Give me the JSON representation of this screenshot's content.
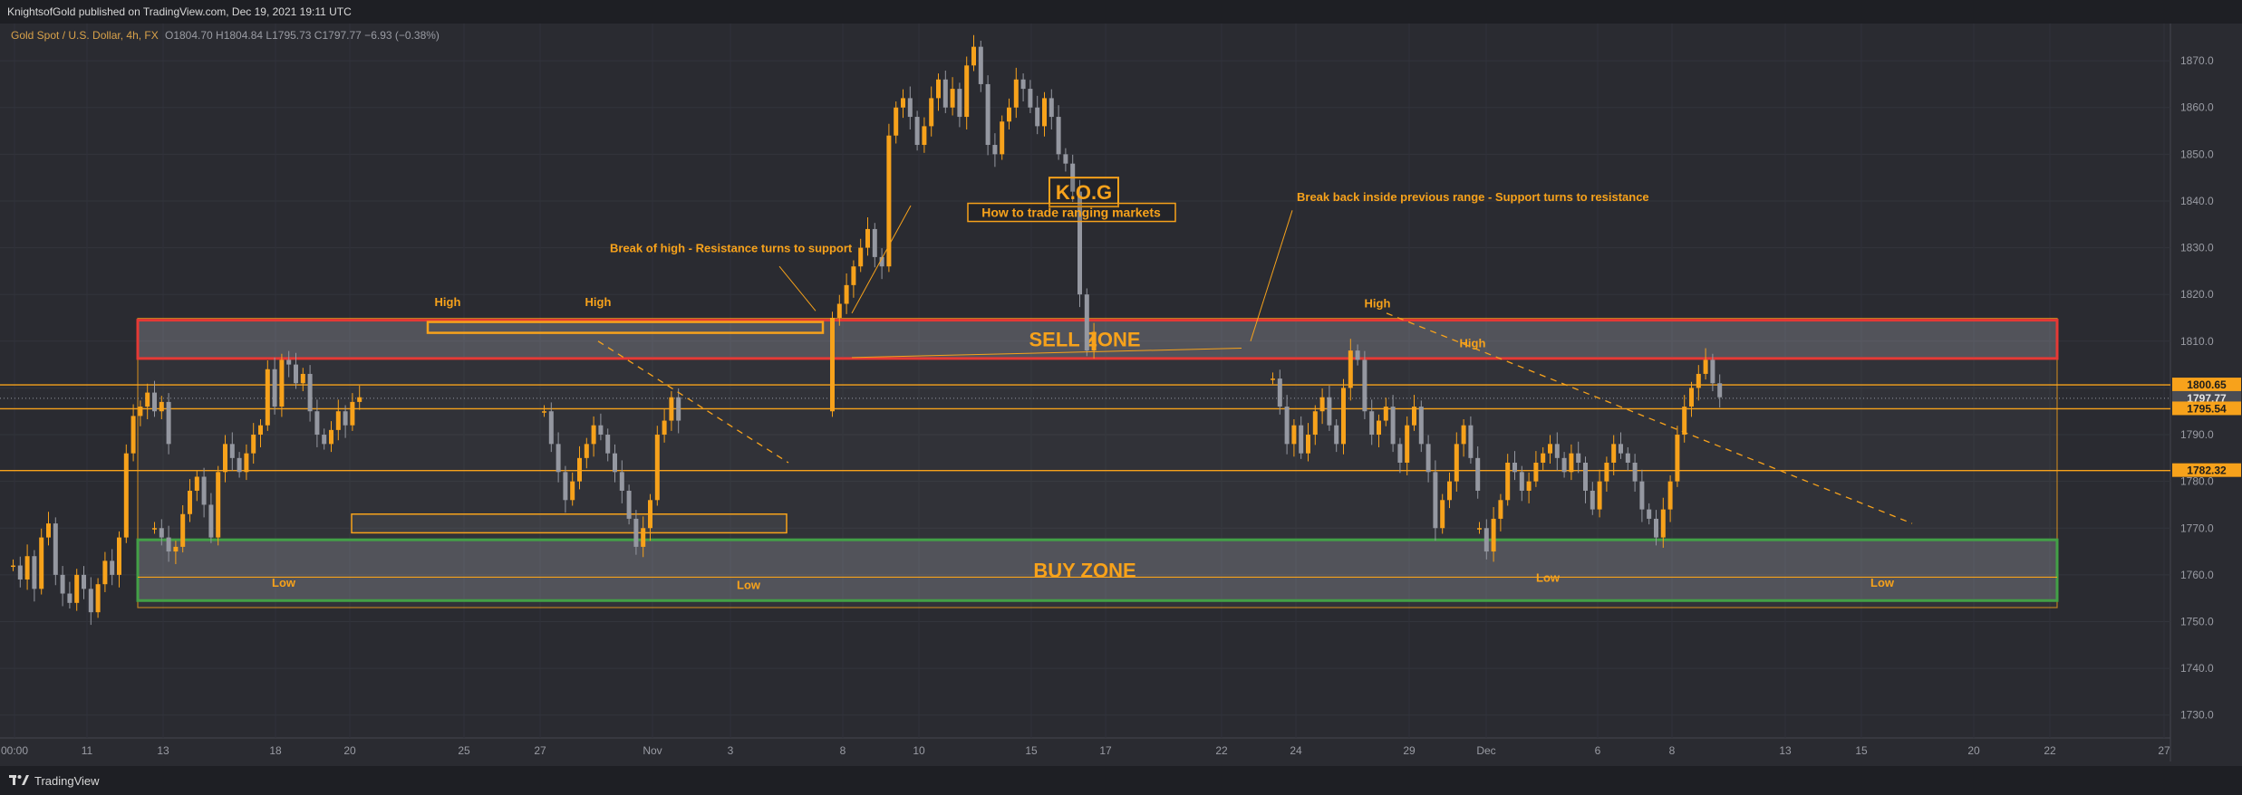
{
  "header": {
    "publisher": "KnightsofGold published on TradingView.com, Dec 19, 2021 19:11 UTC"
  },
  "symbol": {
    "name": "Gold Spot / U.S. Dollar, 4h, FX",
    "ohlc": "O1804.70  H1804.84  L1795.73  C1797.77  −6.93 (−0.38%)"
  },
  "footer": {
    "brand": "TradingView",
    "logo_icon": "tradingview-logo-icon"
  },
  "colors": {
    "background": "#2a2b31",
    "candle_up": "#f7a21b",
    "candle_down": "#9598a1",
    "sell_zone": "#e53935",
    "buy_zone": "#43a047",
    "level": "#f7a21b",
    "annotation": "#f7a21b"
  },
  "chart_data": {
    "type": "candlestick",
    "title": "Gold Spot / U.S. Dollar, 4h, FX",
    "ylim": [
      1722,
      1877
    ],
    "y_ticks": [
      1730,
      1740,
      1750,
      1760,
      1770,
      1780,
      1790,
      1800,
      1810,
      1820,
      1830,
      1840,
      1850,
      1860,
      1870
    ],
    "x_tick_labels": [
      "00:00",
      "11",
      "13",
      "18",
      "20",
      "25",
      "27",
      "Nov",
      "3",
      "8",
      "10",
      "15",
      "17",
      "22",
      "24",
      "29",
      "Dec",
      "6",
      "8",
      "13",
      "15",
      "20",
      "22",
      "27"
    ],
    "price_levels": [
      {
        "label": "1800.65",
        "value": 1800.65,
        "current": false
      },
      {
        "label": "1797.77",
        "value": 1797.77,
        "current": true
      },
      {
        "label": "1795.54",
        "value": 1795.54,
        "current": false
      },
      {
        "label": "1782.32",
        "value": 1782.32,
        "current": false
      }
    ],
    "zones": [
      {
        "name": "SELL ZONE",
        "label": "SELL ZONE",
        "top": 1814.5,
        "bottom": 1806.3
      },
      {
        "name": "BUY ZONE",
        "label": "BUY ZONE",
        "top": 1767.5,
        "bottom": 1754.5
      }
    ],
    "labels": {
      "kog": "K.O.G",
      "subtitle": "How to trade ranging markets",
      "break_high": "Break of high - Resistance turns to support",
      "break_back": "Break back inside previous range - Support turns to resistance",
      "high": "High",
      "low": "Low"
    },
    "swing_highs": [
      {
        "text": "High",
        "x": 0.186
      },
      {
        "text": "High",
        "x": 0.257
      },
      {
        "text": "High",
        "x": 0.614
      },
      {
        "text": "High",
        "x": 0.657
      }
    ],
    "swing_lows": [
      {
        "text": "Low",
        "x": 0.122
      },
      {
        "text": "Low",
        "x": 0.341
      },
      {
        "text": "Low",
        "x": 0.709
      },
      {
        "text": "Low",
        "x": 0.862
      }
    ],
    "series": [
      {
        "segment": "oct-start",
        "close": [
          1762,
          1759,
          1764,
          1757,
          1768,
          1771,
          1760,
          1756,
          1754,
          1760,
          1757,
          1752,
          1758,
          1763,
          1760,
          1768,
          1786,
          1794,
          1796,
          1799,
          1795,
          1797,
          1788
        ]
      },
      {
        "segment": "oct-mid",
        "close": [
          1770,
          1768,
          1765,
          1766,
          1773,
          1778,
          1781,
          1775,
          1768,
          1782,
          1788,
          1785,
          1782,
          1786,
          1790,
          1792,
          1804,
          1796,
          1806,
          1805,
          1801,
          1803,
          1795,
          1790,
          1788,
          1791,
          1795,
          1792,
          1797,
          1798
        ]
      },
      {
        "segment": "oct-late",
        "close": [
          1795,
          1788,
          1782,
          1776,
          1780,
          1785,
          1788,
          1792,
          1790,
          1786,
          1782,
          1778,
          1772,
          1766,
          1770,
          1776,
          1790,
          1793,
          1798,
          1793
        ]
      },
      {
        "segment": "nov-rally",
        "close": [
          1815,
          1818,
          1822,
          1826,
          1830,
          1834,
          1828,
          1826,
          1854,
          1860,
          1862,
          1858,
          1852,
          1856,
          1862,
          1866,
          1860,
          1864,
          1858,
          1869,
          1873,
          1865,
          1852,
          1850,
          1857,
          1860,
          1866,
          1864,
          1860,
          1856,
          1862,
          1858,
          1850,
          1848,
          1842,
          1820,
          1808,
          1812
        ]
      },
      {
        "segment": "nov-late",
        "close": [
          1802,
          1796,
          1788,
          1792,
          1786,
          1790,
          1795,
          1798,
          1792,
          1788,
          1800,
          1808,
          1806,
          1795,
          1790,
          1793,
          1796,
          1788,
          1784,
          1792,
          1796,
          1788,
          1782,
          1770,
          1776,
          1780,
          1788,
          1792,
          1785,
          1778
        ]
      },
      {
        "segment": "dec",
        "close": [
          1770,
          1765,
          1772,
          1776,
          1784,
          1782,
          1778,
          1780,
          1784,
          1786,
          1788,
          1785,
          1782,
          1786,
          1784,
          1778,
          1774,
          1780,
          1784,
          1788,
          1786,
          1784,
          1780,
          1774,
          1772,
          1768,
          1774,
          1780,
          1790,
          1796,
          1800,
          1803,
          1806,
          1801,
          1798
        ]
      }
    ]
  }
}
